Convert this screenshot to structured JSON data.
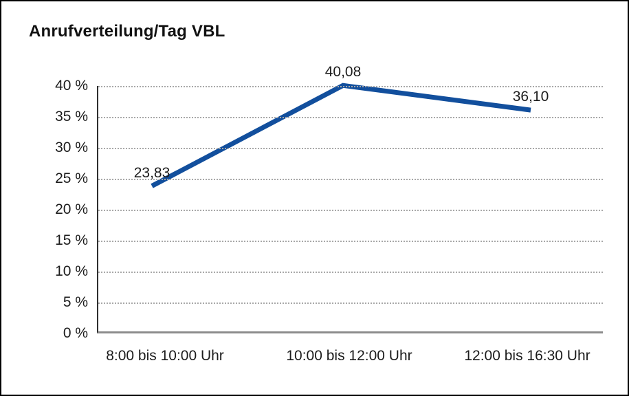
{
  "page": {
    "title": "Anrufverteilung/Tag VBL"
  },
  "chart_data": {
    "type": "line",
    "title": "Anrufverteilung/Tag VBL",
    "categories": [
      "8:00 bis 10:00 Uhr",
      "10:00 bis 12:00 Uhr",
      "12:00 bis 16:30 Uhr"
    ],
    "series": [
      {
        "name": "",
        "values": [
          23.83,
          40.08,
          36.1
        ]
      }
    ],
    "data_labels": [
      "23,83",
      "40,08",
      "36,10"
    ],
    "xlabel": "",
    "ylabel": "",
    "ylim": [
      0,
      40
    ],
    "ytick_step": 5,
    "ytick_labels": [
      "40 %",
      "35 %",
      "30 %",
      "25 %",
      "20 %",
      "15 %",
      "10 %",
      "5 %",
      "0 %"
    ],
    "grid": "horizontal-dotted",
    "legend_position": "none",
    "colors": {
      "line": "#124f9d",
      "text": "#1c1c1c",
      "gridline": "#a8a8a8",
      "y_axis": "#2e2e2e",
      "x_axis": "#8c8c8c",
      "frame_border": "#000000",
      "background": "#ffffff"
    }
  }
}
